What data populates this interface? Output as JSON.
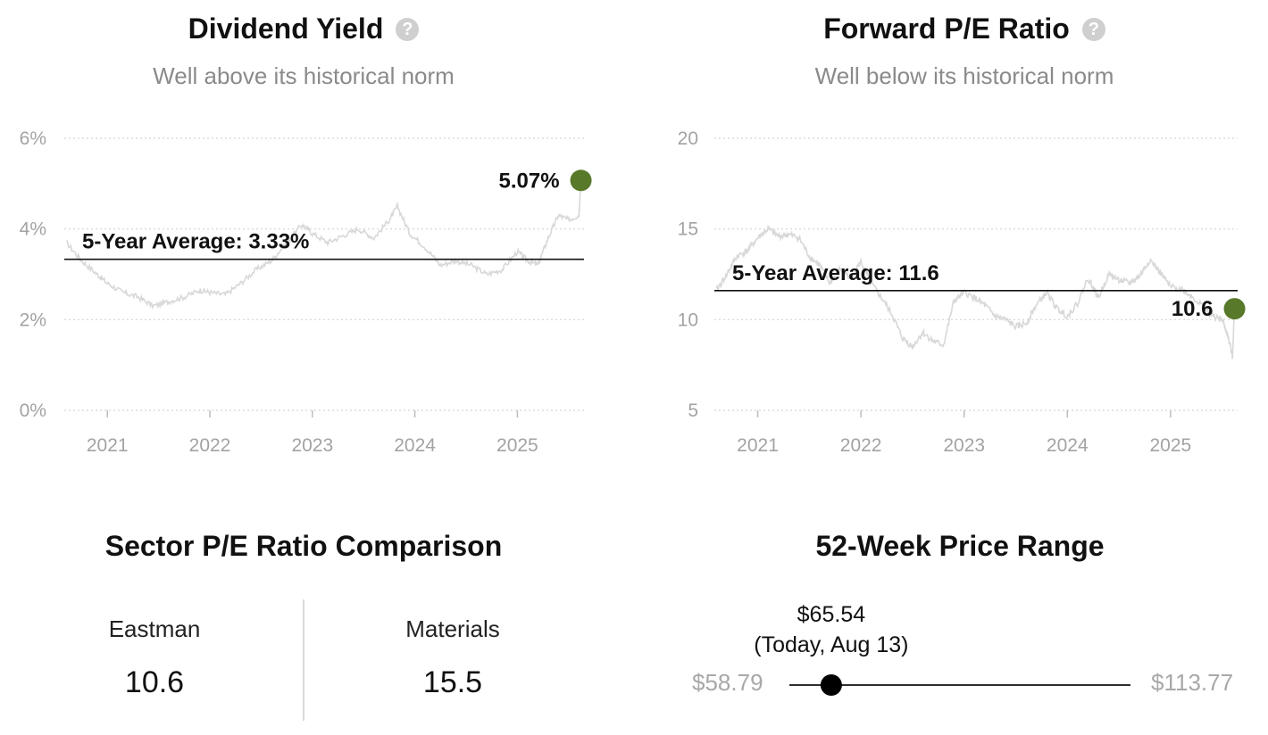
{
  "dividend_yield": {
    "title": "Dividend Yield",
    "help_icon": "question-circle-icon",
    "subtitle": "Well above its historical norm",
    "average_label": "5-Year Average: 3.33%",
    "current_label": "5.07%",
    "accent_color": "#58792a"
  },
  "forward_pe": {
    "title": "Forward P/E Ratio",
    "help_icon": "question-circle-icon",
    "subtitle": "Well below its historical norm",
    "average_label": "5-Year Average: 11.6",
    "current_label": "10.6",
    "accent_color": "#58792a"
  },
  "sector_comparison": {
    "title": "Sector P/E Ratio Comparison",
    "items": [
      {
        "name": "Eastman",
        "value": "10.6"
      },
      {
        "name": "Materials",
        "value": "15.5"
      }
    ]
  },
  "price_range": {
    "title": "52-Week Price Range",
    "low_label": "$58.79",
    "high_label": "$113.77",
    "today_price": "$65.54",
    "today_note": "(Today, Aug 13)",
    "low": 58.79,
    "high": 113.77,
    "today": 65.54
  },
  "chart_data": [
    {
      "type": "line",
      "title": "Dividend Yield",
      "subtitle": "Well above its historical norm",
      "x_tick_labels": [
        "2021",
        "2022",
        "2023",
        "2024",
        "2025"
      ],
      "y_tick_labels": [
        "0%",
        "2%",
        "4%",
        "6%"
      ],
      "ylim": [
        0,
        6
      ],
      "grid": true,
      "series": [
        {
          "x": [
            2020.6,
            2020.75,
            2020.9,
            2021.0,
            2021.15,
            2021.3,
            2021.45,
            2021.6,
            2021.75,
            2021.9,
            2022.0,
            2022.15,
            2022.3,
            2022.45,
            2022.6,
            2022.75,
            2022.9,
            2023.0,
            2023.15,
            2023.3,
            2023.45,
            2023.6,
            2023.75,
            2023.83,
            2023.95,
            2024.1,
            2024.25,
            2024.4,
            2024.55,
            2024.7,
            2024.85,
            2025.0,
            2025.1,
            2025.2,
            2025.3,
            2025.4,
            2025.5,
            2025.6,
            2025.62
          ],
          "y": [
            3.7,
            3.3,
            3.0,
            2.8,
            2.6,
            2.5,
            2.3,
            2.4,
            2.5,
            2.65,
            2.6,
            2.55,
            2.8,
            3.1,
            3.3,
            3.7,
            4.1,
            3.9,
            3.7,
            3.85,
            4.0,
            3.8,
            4.2,
            4.5,
            3.9,
            3.6,
            3.2,
            3.3,
            3.2,
            3.0,
            3.1,
            3.5,
            3.3,
            3.2,
            3.8,
            4.3,
            4.2,
            4.3,
            5.07
          ]
        }
      ],
      "reference_lines": [
        {
          "label": "5-Year Average: 3.33%",
          "y": 3.33
        }
      ],
      "annotations": [
        {
          "label": "5.07%",
          "y": 5.07
        }
      ]
    },
    {
      "type": "line",
      "title": "Forward P/E Ratio",
      "subtitle": "Well below its historical norm",
      "x_tick_labels": [
        "2021",
        "2022",
        "2023",
        "2024",
        "2025"
      ],
      "y_tick_labels": [
        "5",
        "10",
        "15",
        "20"
      ],
      "ylim": [
        5,
        20
      ],
      "grid": true,
      "series": [
        {
          "x": [
            2020.6,
            2020.7,
            2020.8,
            2020.9,
            2021.0,
            2021.1,
            2021.2,
            2021.3,
            2021.4,
            2021.5,
            2021.6,
            2021.7,
            2021.8,
            2021.9,
            2022.0,
            2022.1,
            2022.2,
            2022.3,
            2022.4,
            2022.5,
            2022.6,
            2022.7,
            2022.8,
            2022.9,
            2023.0,
            2023.1,
            2023.2,
            2023.3,
            2023.4,
            2023.5,
            2023.6,
            2023.7,
            2023.8,
            2023.9,
            2024.0,
            2024.1,
            2024.2,
            2024.3,
            2024.4,
            2024.5,
            2024.6,
            2024.7,
            2024.8,
            2024.9,
            2025.0,
            2025.1,
            2025.2,
            2025.3,
            2025.4,
            2025.5,
            2025.55,
            2025.6,
            2025.62
          ],
          "y": [
            11.6,
            12.5,
            13.5,
            13.8,
            14.5,
            15.0,
            14.6,
            14.7,
            14.5,
            13.5,
            13.0,
            12.0,
            12.8,
            12.3,
            13.2,
            12.0,
            11.2,
            10.3,
            9.0,
            8.5,
            9.3,
            8.8,
            8.6,
            11.0,
            11.5,
            11.2,
            10.8,
            10.2,
            10.0,
            9.6,
            9.8,
            10.8,
            11.5,
            10.6,
            10.2,
            10.9,
            12.3,
            11.2,
            12.5,
            12.2,
            12.0,
            12.4,
            13.3,
            12.6,
            11.8,
            11.7,
            11.3,
            10.8,
            10.2,
            10.0,
            9.2,
            8.0,
            10.6
          ]
        }
      ],
      "reference_lines": [
        {
          "label": "5-Year Average: 11.6",
          "y": 11.6
        }
      ],
      "annotations": [
        {
          "label": "10.6",
          "y": 10.6
        }
      ]
    }
  ]
}
